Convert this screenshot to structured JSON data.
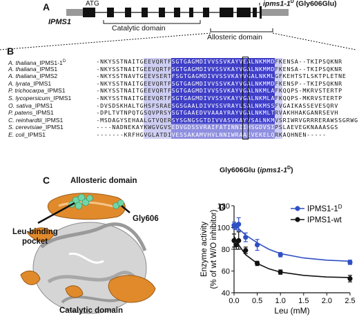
{
  "panels": {
    "a": "A",
    "b": "B",
    "c": "C",
    "d": "D"
  },
  "gene": {
    "name": "IPMS1",
    "atg": "ATG",
    "mutant_label": "ipms1-1",
    "mutant_sup": "D",
    "mutant_suffix": " (Gly606Glu)",
    "catalytic": "Catalytic domain",
    "allosteric": "Allosteric domain"
  },
  "alignment": {
    "rows": [
      {
        "genus": "A. thaliana",
        "gene": "_IPMS1-1",
        "sup": "D",
        "seq": "-NKYSSTNAITGEEVQRTFSGTGAGMDIVVSSVKAYVEALNKMMDFKENSA--TKIPSQKNR"
      },
      {
        "genus": "A. thaliana",
        "gene": "_IPMS1",
        "sup": "",
        "seq": "-NKYSSTNAITGEEVQRTFSGTGAGMDIVVSSVKAYVGALNKMMDFKENSA--TKIPSQKNR"
      },
      {
        "genus": "A. thaliana",
        "gene": "_IPMS2",
        "sup": "",
        "seq": "-NKYSSTNAVTGEEVSERTFSGTGAGMDIVVSSVKAYVGALNKMLGFKEHTSTLSKTPLETNE"
      },
      {
        "genus": "A. lyrata",
        "gene": "_IPMS1",
        "sup": "",
        "seq": "-NKYSSTNAITGEEVQRTFSGTGAGMDIVVSSVKAYVGALNKMMDFKENSP--TKIPSQKNR"
      },
      {
        "genus": "P. trichocarpa",
        "gene": "_IPMS1",
        "sup": "",
        "seq": "-NKYSSTNAITGEEVQRTFSGTGAGMDIVVSSVKAYVGALNKMLAFKQQPS-MKRVSTERTP"
      },
      {
        "genus": "S. lycopersicum",
        "gene": "_IPMS1",
        "sup": "",
        "seq": "-NKYSSTNAITGEEVQRTFSGTGAGMDIVVSSVKAYVGALNKMLAFKQQPS-MKRVSTERTP"
      },
      {
        "genus": "O. sativa",
        "gene": "_IPMS1",
        "sup": "",
        "seq": "-DVSDSKHALTGHSFSRAESGSGAALDIVVSSVRAYLSALNKMSSFVGAIKASSEVESQRV"
      },
      {
        "genus": "P. patens",
        "gene": "_IPMS1",
        "sup": "",
        "seq": "-DPLTVTNPQTGSQVPRSYSGTGAAEDVVAAAYRAYVGALNKMLTRVAKHHAKGANRSEVH"
      },
      {
        "genus": "C. reinhardtii",
        "gene": "_IPMS1",
        "sup": "",
        "seq": "-MSDAGYSEHAALGTVQERSYSGNGSGTDIVVASVKAYVSALNKMVSRIWRVGRRRERAWSSGRWG"
      },
      {
        "genus": "S. cerevisiae",
        "gene": "_IPMS1",
        "sup": "",
        "seq": "----NADNEKAYKWGVGVSEDVGDSSVRAIFATINNIIHSGDVSIPSLAEVEGKNAAASGS"
      },
      {
        "genus": "E. coli",
        "gene": "_IPMS1",
        "sup": "",
        "seq": "-------KRFHGVGLATDIVESSAKAMVHVLNNIWRAAEVEKELQRKAQHNEN-----"
      }
    ],
    "mutation_label": "Gly606Glu (",
    "mutation_italic": "ipms1-1",
    "mutation_sup": "D",
    "mutation_close": ")"
  },
  "structure": {
    "allosteric": "Allosteric domain",
    "pocket_line1": "Leu-binding",
    "pocket_line2": "pocket",
    "gly": "Gly606",
    "catalytic": "Catalytic domain",
    "color_allosteric": "#e08a2c",
    "color_core": "#bdbdbd",
    "color_leu": "#6fd6a6"
  },
  "chart_data": {
    "type": "line",
    "xlabel": "Leu (mM)",
    "ylabel_line1": "Enzyme activity",
    "ylabel_line2": "(% of wt W/O inhibitor)",
    "xlim": [
      0,
      2.5
    ],
    "ylim": [
      40,
      120
    ],
    "xticks": [
      "0.0",
      "0.5",
      "1.0",
      "1.5",
      "2.0",
      "2.5"
    ],
    "yticks": [
      "40",
      "60",
      "80",
      "100",
      "120"
    ],
    "legend_position": "top-right",
    "series": [
      {
        "name": "IPMS1-1",
        "sup": "D",
        "color": "#2f4fc4",
        "x": [
          0,
          0.05,
          0.1,
          0.25,
          0.5,
          1.0,
          2.5
        ],
        "y": [
          102,
          101,
          103,
          91,
          84,
          75,
          68
        ],
        "err": [
          3,
          3,
          6,
          4,
          5,
          2,
          2
        ],
        "fit": [
          [
            0,
            103
          ],
          [
            0.1,
            99
          ],
          [
            0.25,
            93
          ],
          [
            0.5,
            86
          ],
          [
            0.75,
            80
          ],
          [
            1.0,
            76
          ],
          [
            1.5,
            72
          ],
          [
            2.0,
            70
          ],
          [
            2.5,
            69
          ]
        ]
      },
      {
        "name": "IPMS1-wt",
        "sup": "",
        "color": "#111111",
        "x": [
          0,
          0.05,
          0.1,
          0.25,
          0.5,
          1.0,
          2.5
        ],
        "y": [
          88,
          84,
          88,
          79,
          67,
          59,
          53
        ],
        "err": [
          6,
          4,
          8,
          3,
          2,
          2,
          3
        ],
        "fit": [
          [
            0,
            92
          ],
          [
            0.1,
            84
          ],
          [
            0.25,
            75
          ],
          [
            0.5,
            67
          ],
          [
            0.75,
            62
          ],
          [
            1.0,
            59
          ],
          [
            1.5,
            56
          ],
          [
            2.0,
            54.5
          ],
          [
            2.5,
            54
          ]
        ]
      }
    ]
  }
}
